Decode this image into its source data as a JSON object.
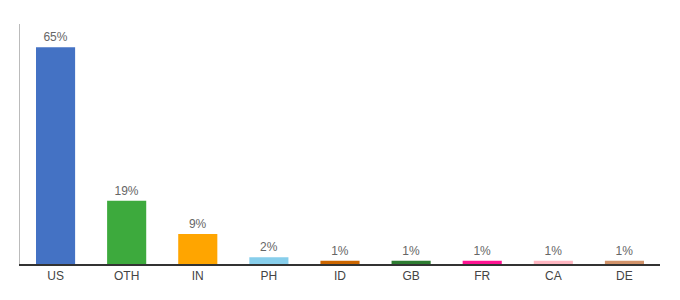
{
  "chart_data": {
    "type": "bar",
    "categories": [
      "US",
      "OTH",
      "IN",
      "PH",
      "ID",
      "GB",
      "FR",
      "CA",
      "DE"
    ],
    "values": [
      65,
      19,
      9,
      2,
      1,
      1,
      1,
      1,
      1
    ],
    "value_labels": [
      "65%",
      "19%",
      "9%",
      "2%",
      "1%",
      "1%",
      "1%",
      "1%",
      "1%"
    ],
    "colors": [
      "#4472C4",
      "#3DAA3D",
      "#FFA500",
      "#87CEEB",
      "#CC6600",
      "#2E7D32",
      "#FF1493",
      "#FFB6C1",
      "#D2936A"
    ],
    "ylim": [
      0,
      72
    ],
    "grid": false,
    "data_labels": true,
    "tick_labels": "x"
  }
}
